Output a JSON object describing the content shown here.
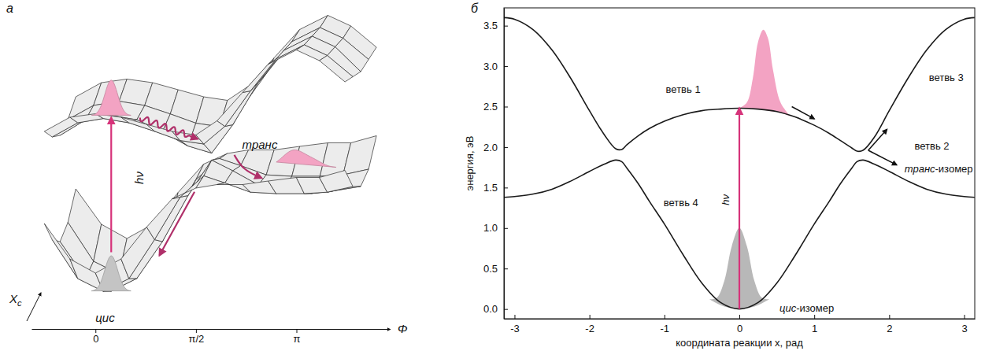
{
  "chart_data": [
    {
      "type": "surface",
      "title": "а",
      "x_label": "Φ",
      "y_label": "Xc",
      "xlim": [
        -1,
        4.6
      ],
      "ylim": [
        -1,
        1
      ],
      "zlim": [
        0,
        4
      ],
      "xticks": [
        0,
        {
          "value": 1.5708,
          "label": "π/2"
        },
        {
          "value": 3.1416,
          "label": "π"
        }
      ],
      "tick_labels": "x",
      "x": [
        -0.8,
        -0.4,
        0,
        0.4,
        0.8,
        1.2,
        1.57,
        1.9,
        2.3,
        2.7,
        3.14,
        3.5,
        3.9
      ],
      "y": [
        -1,
        -0.5,
        0,
        0.5,
        1
      ],
      "surfaces": [
        {
          "color": "#ececec",
          "z": [
            [
              1.2,
              0.7,
              0.5,
              0.7,
              1.15,
              1.55,
              1.7,
              1.75,
              1.75,
              1.8,
              1.85,
              1.85,
              1.95
            ],
            [
              0.85,
              0.3,
              0.12,
              0.3,
              0.85,
              1.45,
              1.75,
              1.65,
              1.52,
              1.5,
              1.5,
              1.52,
              1.6
            ],
            [
              0.7,
              0.18,
              0,
              0.18,
              0.7,
              1.35,
              1.85,
              1.7,
              1.5,
              1.42,
              1.38,
              1.42,
              1.48
            ],
            [
              0.85,
              0.3,
              0.12,
              0.3,
              0.85,
              1.45,
              1.75,
              1.65,
              1.52,
              1.5,
              1.5,
              1.52,
              1.6
            ],
            [
              1.2,
              0.7,
              0.5,
              0.7,
              1.15,
              1.55,
              1.7,
              1.75,
              1.75,
              1.8,
              1.85,
              1.85,
              1.95
            ]
          ]
        },
        {
          "color": "#ececec",
          "z": [
            [
              2.5,
              2.7,
              2.75,
              2.7,
              2.6,
              2.5,
              2.45,
              2.65,
              3.05,
              3.45,
              3.65,
              3.5,
              3.2
            ],
            [
              2.3,
              2.5,
              2.56,
              2.5,
              2.38,
              2.25,
              2.2,
              2.45,
              2.95,
              3.4,
              3.6,
              3.45,
              3.15
            ],
            [
              2.2,
              2.42,
              2.48,
              2.42,
              2.25,
              2.05,
              1.95,
              2.35,
              2.95,
              3.4,
              3.6,
              3.45,
              3.1
            ],
            [
              2.3,
              2.5,
              2.56,
              2.5,
              2.38,
              2.25,
              2.2,
              2.45,
              2.95,
              3.4,
              3.6,
              3.45,
              3.15
            ],
            [
              2.5,
              2.7,
              2.75,
              2.7,
              2.6,
              2.5,
              2.45,
              2.65,
              3.05,
              3.45,
              3.65,
              3.5,
              3.2
            ]
          ]
        }
      ],
      "wavepackets": [
        {
          "x": 0,
          "y": 0,
          "z": 0,
          "color": "#c4c4c4",
          "marker": "gaussian"
        },
        {
          "x": 0,
          "y": 0,
          "z": 2.48,
          "color": "#f3a3c3",
          "marker": "gaussian"
        },
        {
          "x": 2.9,
          "y": 0.6,
          "z": 1.6,
          "color": "#f3a3c3",
          "marker": "skewed"
        }
      ],
      "arrows": [
        {
          "points": [
            [
              0,
              0,
              0.55
            ],
            [
              0,
              0,
              2.45
            ]
          ],
          "color": "#d6337a",
          "line_style": "solid"
        },
        {
          "points": [
            [
              0.45,
              0,
              2.45
            ],
            [
              1.35,
              0,
              2.15
            ]
          ],
          "color": "#b0306a",
          "line_style": "wavy"
        },
        {
          "points": [
            [
              1.85,
              0.3,
              1.85
            ],
            [
              2.0,
              0.25,
              1.65
            ],
            [
              2.3,
              0.2,
              1.55
            ]
          ],
          "color": "#b0306a",
          "line_style": "solid"
        },
        {
          "points": [
            [
              1.45,
              -0.6,
              1.55
            ],
            [
              1.0,
              -1,
              0.75
            ]
          ],
          "color": "#b0306a",
          "line_style": "solid"
        }
      ],
      "annotations": [
        {
          "text": "цис",
          "x": 0.15,
          "y": -1,
          "z": -0.15
        },
        {
          "text": "транс",
          "x": 2.2,
          "y": 0.5,
          "z": 1.93
        },
        {
          "text": "hν",
          "x": 0.45,
          "y": 0,
          "z": 1.6,
          "orientation": "vertical"
        }
      ]
    },
    {
      "type": "line",
      "title": "б",
      "x_label": "координата реакции x, рад",
      "y_label": "энергия, эВ",
      "xlim": [
        -3.1416,
        3.1416
      ],
      "ylim": [
        -0.12,
        3.72
      ],
      "xticks": [
        -3,
        -2,
        -1,
        0,
        1,
        2,
        3
      ],
      "yticks": [
        {
          "value": 0,
          "label": "0.0"
        },
        0.5,
        {
          "value": 1,
          "label": "1.0"
        },
        1.5,
        {
          "value": 2,
          "label": "2.0"
        },
        2.5,
        {
          "value": 3,
          "label": "3.0"
        },
        3.5
      ],
      "x": [
        -3.14,
        -3,
        -2.75,
        -2.5,
        -2.25,
        -2,
        -1.8,
        -1.65,
        -1.57,
        -1.5,
        -1.35,
        -1.2,
        -1,
        -0.75,
        -0.5,
        -0.25,
        0,
        0.25,
        0.5,
        0.75,
        1,
        1.2,
        1.35,
        1.5,
        1.57,
        1.65,
        1.8,
        2,
        2.25,
        2.5,
        2.75,
        3,
        3.14
      ],
      "series": [
        {
          "color": "#1a1a1a",
          "values": [
            1.38,
            1.39,
            1.42,
            1.48,
            1.58,
            1.7,
            1.79,
            1.84,
            1.82,
            1.74,
            1.55,
            1.33,
            1.05,
            0.67,
            0.32,
            0.08,
            0,
            0.08,
            0.32,
            0.67,
            1.05,
            1.33,
            1.55,
            1.74,
            1.82,
            1.84,
            1.79,
            1.7,
            1.58,
            1.48,
            1.42,
            1.39,
            1.38
          ]
        },
        {
          "color": "#1a1a1a",
          "values": [
            3.6,
            3.58,
            3.45,
            3.2,
            2.85,
            2.45,
            2.15,
            1.98,
            1.97,
            2.03,
            2.14,
            2.23,
            2.32,
            2.4,
            2.45,
            2.47,
            2.48,
            2.47,
            2.44,
            2.37,
            2.27,
            2.17,
            2.08,
            1.99,
            1.95,
            1.96,
            2.12,
            2.45,
            2.85,
            3.2,
            3.45,
            3.58,
            3.6
          ]
        },
        {
          "type": "area",
          "color": "#b8b8b8",
          "x": [
            -0.4,
            -0.3,
            -0.2,
            -0.1,
            0,
            0.1,
            0.2,
            0.3,
            0.4
          ],
          "values": [
            0.12,
            0.14,
            0.35,
            0.78,
            1.0,
            0.78,
            0.35,
            0.14,
            0.12
          ],
          "base": [
            0.12,
            0.07,
            0.03,
            0.01,
            0,
            0.01,
            0.03,
            0.07,
            0.12
          ]
        },
        {
          "type": "area",
          "color": "#f3a3c3",
          "x": [
            0,
            0.1,
            0.18,
            0.25,
            0.32,
            0.38,
            0.45,
            0.55,
            0.68
          ],
          "values": [
            2.48,
            2.55,
            2.85,
            3.3,
            3.45,
            3.35,
            2.95,
            2.55,
            2.38
          ],
          "base": [
            2.48,
            2.47,
            2.47,
            2.47,
            2.46,
            2.45,
            2.44,
            2.43,
            2.38
          ]
        }
      ],
      "arrows": [
        {
          "x1": 0,
          "y1": 0,
          "x2": 0,
          "y2": 2.48,
          "color": "#d6337a"
        },
        {
          "x1": 0.7,
          "y1": 2.5,
          "x2": 1.0,
          "y2": 2.35,
          "color": "#111111"
        },
        {
          "x1": 1.72,
          "y1": 1.96,
          "x2": 1.97,
          "y2": 2.22,
          "color": "#111111"
        },
        {
          "x1": 1.72,
          "y1": 1.96,
          "x2": 2.1,
          "y2": 1.78,
          "color": "#111111"
        }
      ],
      "annotations": [
        {
          "text": "ветвь 1",
          "x": -0.75,
          "y": 2.7
        },
        {
          "text": "ветвь 2",
          "x": 2.57,
          "y": 2.0
        },
        {
          "text": "ветвь 3",
          "x": 2.76,
          "y": 2.85
        },
        {
          "text": "ветвь 4",
          "x": -0.78,
          "y": 1.3
        },
        {
          "text": "транс-изомер",
          "x": 2.66,
          "y": 1.72
        },
        {
          "text": "цис-изомер",
          "x": 0.9,
          "y": 0.0
        },
        {
          "text": "hν",
          "x": -0.17,
          "y": 1.35,
          "orientation": "vertical"
        }
      ]
    }
  ]
}
